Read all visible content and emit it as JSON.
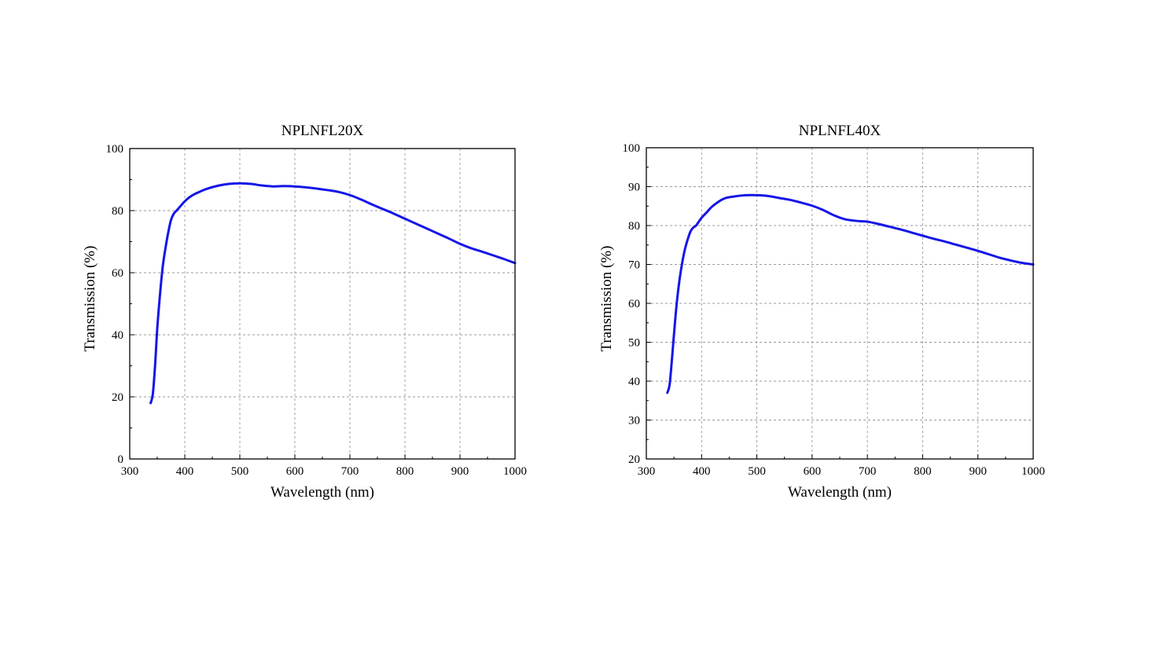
{
  "chart_data": [
    {
      "type": "line",
      "title": "NPLNFL20X",
      "xlabel": "Wavelength (nm)",
      "ylabel": "Transmission (%)",
      "xlim": [
        300,
        1000
      ],
      "ylim": [
        0,
        100
      ],
      "xticks": [
        300,
        400,
        500,
        600,
        700,
        800,
        900,
        1000
      ],
      "yticks": [
        0,
        20,
        40,
        60,
        80,
        100
      ],
      "grid": true,
      "series": [
        {
          "color": "#1515e8",
          "x": [
            338,
            342,
            346,
            350,
            355,
            360,
            365,
            370,
            375,
            380,
            385,
            390,
            400,
            410,
            420,
            440,
            460,
            480,
            500,
            520,
            540,
            560,
            580,
            600,
            620,
            640,
            660,
            680,
            700,
            720,
            740,
            760,
            780,
            800,
            820,
            840,
            860,
            880,
            900,
            920,
            940,
            960,
            980,
            1000
          ],
          "y": [
            18,
            21,
            30,
            42,
            53,
            62,
            68,
            73,
            77,
            79,
            80,
            81,
            83,
            84.5,
            85.5,
            87,
            88,
            88.6,
            88.8,
            88.6,
            88.1,
            87.8,
            87.9,
            87.8,
            87.5,
            87.1,
            86.6,
            86,
            85,
            83.6,
            82,
            80.5,
            79,
            77.4,
            75.8,
            74.2,
            72.6,
            71,
            69.3,
            67.9,
            66.8,
            65.6,
            64.4,
            63.1
          ]
        }
      ]
    },
    {
      "type": "line",
      "title": "NPLNFL40X",
      "xlabel": "Wavelength (nm)",
      "ylabel": "Transmission (%)",
      "xlim": [
        300,
        1000
      ],
      "ylim": [
        20,
        100
      ],
      "xticks": [
        300,
        400,
        500,
        600,
        700,
        800,
        900,
        1000
      ],
      "yticks": [
        20,
        30,
        40,
        50,
        60,
        70,
        80,
        90,
        100
      ],
      "grid": true,
      "series": [
        {
          "color": "#1515e8",
          "x": [
            338,
            342,
            346,
            350,
            355,
            360,
            365,
            370,
            375,
            380,
            385,
            390,
            400,
            410,
            420,
            440,
            460,
            480,
            500,
            520,
            540,
            560,
            580,
            600,
            620,
            640,
            660,
            680,
            700,
            720,
            740,
            760,
            780,
            800,
            820,
            840,
            860,
            880,
            900,
            920,
            940,
            960,
            980,
            1000
          ],
          "y": [
            37,
            39,
            45,
            52,
            60,
            66,
            70.5,
            74,
            76.5,
            78.5,
            79.5,
            80,
            82,
            83.5,
            85,
            86.9,
            87.5,
            87.8,
            87.8,
            87.6,
            87.1,
            86.6,
            85.9,
            85.1,
            84,
            82.6,
            81.6,
            81.2,
            81,
            80.4,
            79.7,
            79,
            78.2,
            77.4,
            76.6,
            75.9,
            75.1,
            74.3,
            73.5,
            72.6,
            71.7,
            71,
            70.4,
            70
          ]
        }
      ]
    }
  ]
}
